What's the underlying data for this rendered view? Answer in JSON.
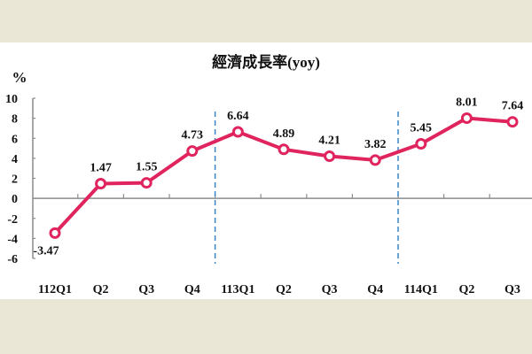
{
  "chart_data": {
    "type": "line",
    "title": "經濟成長率(yoy)",
    "ylabel": "%",
    "xlabel": "",
    "ylim": [
      -6,
      10
    ],
    "yticks": [
      10,
      8,
      6,
      4,
      2,
      0,
      -2,
      -4,
      -6
    ],
    "categories": [
      "112Q1",
      "Q2",
      "Q3",
      "Q4",
      "113Q1",
      "Q2",
      "Q3",
      "Q4",
      "114Q1",
      "Q2",
      "Q3"
    ],
    "series": [
      {
        "name": "經濟成長率",
        "values": [
          -3.47,
          1.47,
          1.55,
          4.73,
          6.64,
          4.89,
          4.21,
          3.82,
          5.45,
          8.01,
          7.64
        ],
        "labels": [
          "-3.47",
          "1.47",
          "1.55",
          "4.73",
          "6.64",
          "4.89",
          "4.21",
          "3.82",
          "5.45",
          "8.01",
          "7.64"
        ],
        "color": "#e0245e"
      }
    ],
    "year_separators_after_index": [
      3,
      7
    ],
    "separator_color": "#3a86c8",
    "grid": false,
    "legend": "none"
  },
  "colors": {
    "background": "#ebe7d6",
    "panel": "#ffffff",
    "axis": "#8c8c8c"
  }
}
